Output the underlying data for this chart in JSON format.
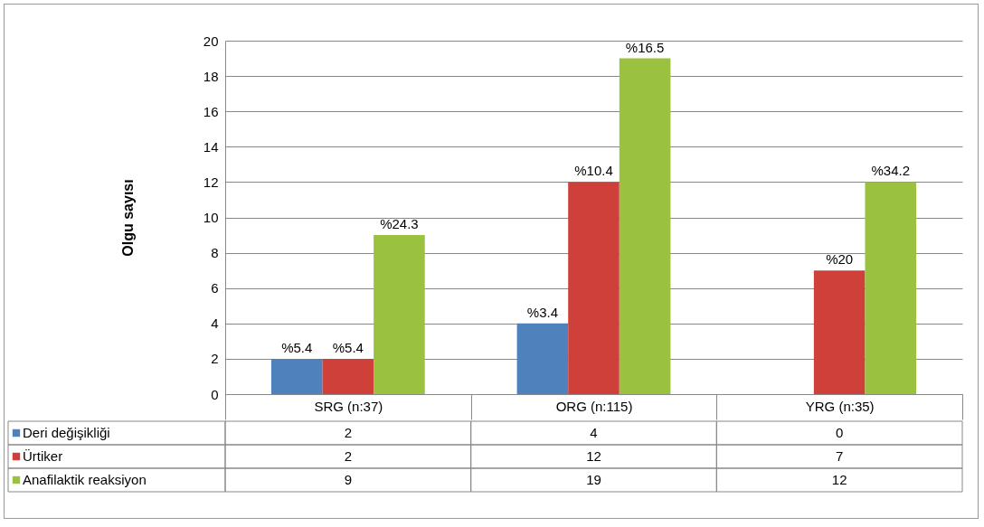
{
  "chart_data": {
    "type": "bar",
    "ylabel": "Olgu sayısı",
    "categories": [
      "SRG (n:37)",
      "ORG (n:115)",
      "YRG (n:35)"
    ],
    "series": [
      {
        "name": "Deri değişikliği",
        "color": "#4f81bd",
        "values": [
          2,
          4,
          0
        ]
      },
      {
        "name": "Ürtiker",
        "color": "#d0403b",
        "values": [
          2,
          12,
          7
        ]
      },
      {
        "name": "Anafilaktik reaksiyon",
        "color": "#9bc23f",
        "values": [
          9,
          19,
          12
        ]
      }
    ],
    "annotations": [
      "%5.4",
      "%5.4",
      "%24.3",
      "%3.4",
      "%10.4",
      "%16.5",
      "%20",
      "%34.2"
    ],
    "ylim": [
      0,
      20
    ],
    "yticks": [
      0,
      2,
      4,
      6,
      8,
      10,
      12,
      14,
      16,
      18,
      20
    ],
    "grid": "y",
    "legend": "bottom left",
    "data_labels": true
  }
}
